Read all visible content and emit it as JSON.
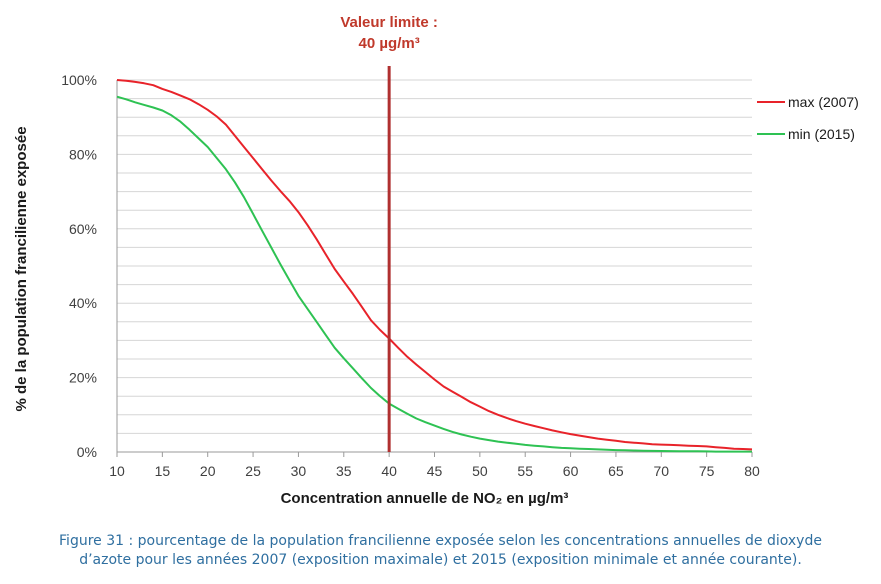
{
  "chart_data": {
    "type": "line",
    "xlabel": "Concentration annuelle de NO₂ en µg/m³",
    "ylabel": "% de la population francilienne exposée",
    "xlim": [
      10,
      80
    ],
    "ylim": [
      0,
      100
    ],
    "x_ticks": [
      "10",
      "15",
      "20",
      "25",
      "30",
      "35",
      "40",
      "45",
      "50",
      "55",
      "60",
      "65",
      "70",
      "75",
      "80"
    ],
    "y_ticks": [
      "0%",
      "20%",
      "40%",
      "60%",
      "80%",
      "100%"
    ],
    "grid": "horizontal",
    "legend_position": "right",
    "limit_line": {
      "x": 40,
      "label_line1": "Valeur limite :",
      "label_line2": "40 µg/m³",
      "color": "#b03030"
    },
    "series": [
      {
        "name": "max (2007)",
        "color": "#e8232a",
        "x": [
          10,
          11,
          12,
          13,
          14,
          15,
          16,
          17,
          18,
          19,
          20,
          21,
          22,
          23,
          24,
          25,
          26,
          27,
          28,
          29,
          30,
          31,
          32,
          33,
          34,
          35,
          36,
          37,
          38,
          39,
          40,
          41,
          42,
          43,
          44,
          45,
          46,
          47,
          48,
          49,
          50,
          51,
          52,
          53,
          54,
          55,
          56,
          57,
          58,
          59,
          60,
          61,
          62,
          63,
          64,
          65,
          66,
          67,
          68,
          69,
          70,
          71,
          72,
          73,
          74,
          75,
          76,
          77,
          78,
          79,
          80
        ],
        "values": [
          100,
          99.8,
          99.5,
          99.1,
          98.6,
          97.6,
          96.8,
          95.8,
          94.8,
          93.5,
          92,
          90.2,
          88,
          85,
          82,
          79,
          76,
          73,
          70.2,
          67.5,
          64.5,
          61,
          57.2,
          53.2,
          49.2,
          45.8,
          42.5,
          39,
          35.4,
          32.8,
          30.5,
          28,
          25.6,
          23.5,
          21.5,
          19.5,
          17.6,
          16.2,
          14.8,
          13.4,
          12.2,
          11,
          10,
          9.1,
          8.3,
          7.6,
          7,
          6.4,
          5.8,
          5.3,
          4.8,
          4.4,
          4,
          3.6,
          3.3,
          3,
          2.7,
          2.5,
          2.3,
          2.1,
          2,
          1.9,
          1.8,
          1.7,
          1.6,
          1.5,
          1.3,
          1.1,
          0.9,
          0.8,
          0.7
        ]
      },
      {
        "name": "min (2015)",
        "color": "#2ec253",
        "x": [
          10,
          11,
          12,
          13,
          14,
          15,
          16,
          17,
          18,
          19,
          20,
          21,
          22,
          23,
          24,
          25,
          26,
          27,
          28,
          29,
          30,
          31,
          32,
          33,
          34,
          35,
          36,
          37,
          38,
          39,
          40,
          41,
          42,
          43,
          44,
          45,
          46,
          47,
          48,
          49,
          50,
          51,
          52,
          53,
          54,
          55,
          56,
          57,
          58,
          59,
          60,
          61,
          62,
          63,
          64,
          65,
          66,
          67,
          68,
          69,
          70,
          71,
          72,
          73,
          74,
          75,
          76,
          77,
          78,
          79,
          80
        ],
        "values": [
          95.5,
          94.8,
          94,
          93.3,
          92.6,
          91.8,
          90.5,
          88.8,
          86.6,
          84.3,
          82,
          79,
          76,
          72.5,
          68.5,
          64,
          59.5,
          55,
          50.5,
          46.2,
          42,
          38.5,
          35,
          31.5,
          28,
          25.2,
          22.5,
          19.8,
          17.2,
          15,
          13,
          11.6,
          10.3,
          9,
          8,
          7.1,
          6.2,
          5.4,
          4.7,
          4.1,
          3.6,
          3.2,
          2.8,
          2.5,
          2.2,
          1.9,
          1.7,
          1.5,
          1.3,
          1.1,
          1,
          0.9,
          0.8,
          0.7,
          0.6,
          0.5,
          0.45,
          0.4,
          0.35,
          0.3,
          0.28,
          0.25,
          0.22,
          0.2,
          0.18,
          0.15,
          0.12,
          0.1,
          0.1,
          0.1,
          0.1
        ]
      }
    ],
    "caption_line1": "Figure 31 : pourcentage de la population francilienne exposée selon les concentrations annuelles de dioxyde",
    "caption_line2": "d’azote pour les années 2007 (exposition maximale) et 2015 (exposition minimale et année courante)."
  }
}
